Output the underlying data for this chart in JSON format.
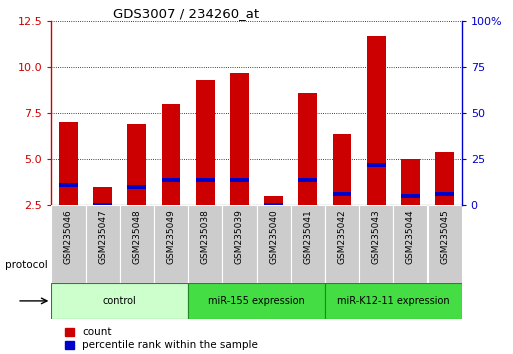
{
  "title": "GDS3007 / 234260_at",
  "samples": [
    "GSM235046",
    "GSM235047",
    "GSM235048",
    "GSM235049",
    "GSM235038",
    "GSM235039",
    "GSM235040",
    "GSM235041",
    "GSM235042",
    "GSM235043",
    "GSM235044",
    "GSM235045"
  ],
  "count_values": [
    7.0,
    3.5,
    6.9,
    8.0,
    9.3,
    9.7,
    3.0,
    8.6,
    6.4,
    11.7,
    5.0,
    5.4
  ],
  "percentile_values": [
    3.6,
    2.5,
    3.5,
    3.9,
    3.9,
    3.9,
    2.5,
    3.9,
    3.1,
    4.7,
    3.0,
    3.1
  ],
  "bar_width": 0.55,
  "count_color": "#cc0000",
  "percentile_color": "#0000cc",
  "ylim_left": [
    2.5,
    12.5
  ],
  "ylim_right": [
    0,
    100
  ],
  "yticks_left": [
    2.5,
    5.0,
    7.5,
    10.0,
    12.5
  ],
  "yticks_right": [
    0,
    25,
    50,
    75,
    100
  ],
  "groups": [
    {
      "label": "control",
      "start": 0,
      "end": 4,
      "color": "#ccffcc"
    },
    {
      "label": "miR-155 expression",
      "start": 4,
      "end": 8,
      "color": "#44dd44"
    },
    {
      "label": "miR-K12-11 expression",
      "start": 8,
      "end": 12,
      "color": "#44dd44"
    }
  ],
  "protocol_label": "protocol",
  "legend_count": "count",
  "legend_percentile": "percentile rank within the sample",
  "tick_color_left": "#cc0000",
  "tick_color_right": "#0000cc",
  "sample_bg_color": "#cccccc",
  "blue_bar_height": 0.22
}
